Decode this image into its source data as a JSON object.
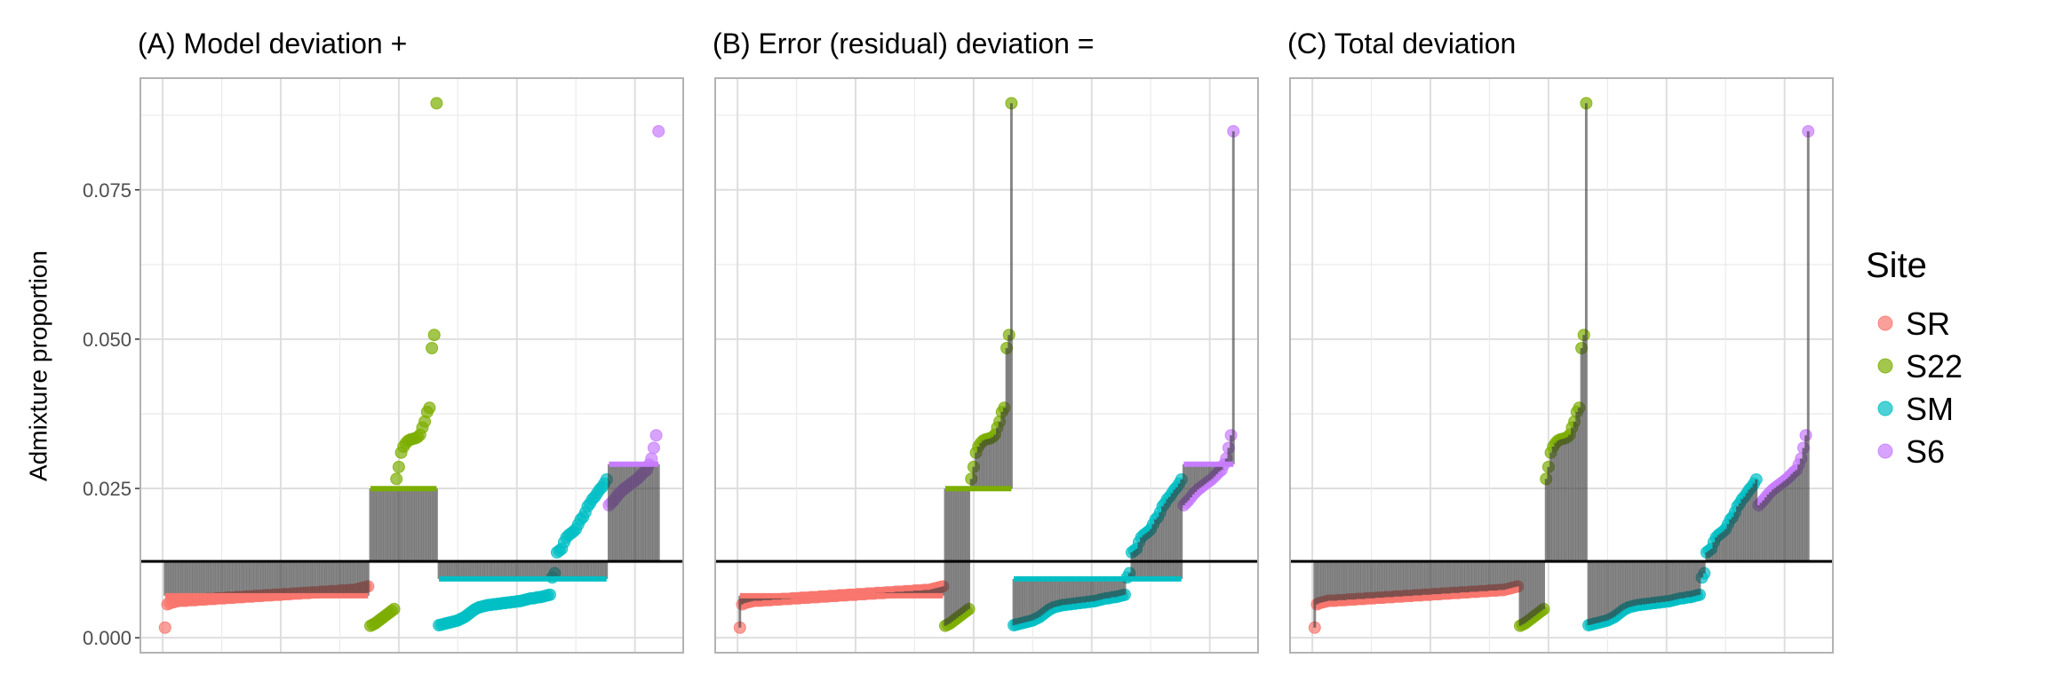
{
  "chart_data": [
    {
      "type": "scatter",
      "title": "(A) Model deviation +",
      "xlabel": "",
      "ylabel": "Admixture proportion",
      "mode": "model",
      "x_ticks_shown": false
    },
    {
      "type": "scatter",
      "title": "(B) Error (residual) deviation =",
      "xlabel": "",
      "ylabel": "",
      "mode": "error",
      "x_ticks_shown": false
    },
    {
      "type": "scatter",
      "title": "(C) Total deviation",
      "xlabel": "",
      "ylabel": "",
      "mode": "total",
      "x_ticks_shown": false
    }
  ],
  "shared": {
    "ylabel": "Admixture proportion",
    "ylim": [
      -0.0025,
      0.0937
    ],
    "y_ticks": [
      0,
      0.025,
      0.05,
      0.075
    ],
    "y_tick_labels": [
      "0.000",
      "0.025",
      "0.050",
      "0.075"
    ],
    "xlim": [
      1,
      210
    ],
    "grid": true,
    "legend": {
      "title": "Site",
      "placement": "right"
    },
    "series": [
      {
        "name": "SR",
        "color": "#F8766D",
        "values": [
          0.0017,
          0.0056,
          0.0058,
          0.0059,
          0.006,
          0.0061,
          0.0062,
          0.0062,
          0.0062,
          0.0062,
          0.0063,
          0.0063,
          0.0063,
          0.0063,
          0.0064,
          0.0064,
          0.0064,
          0.0064,
          0.0065,
          0.0065,
          0.0065,
          0.0065,
          0.0066,
          0.0066,
          0.0066,
          0.0066,
          0.0067,
          0.0067,
          0.0067,
          0.0067,
          0.0068,
          0.0068,
          0.0068,
          0.0068,
          0.0069,
          0.0069,
          0.0069,
          0.0069,
          0.007,
          0.007,
          0.007,
          0.007,
          0.0071,
          0.0071,
          0.0071,
          0.0071,
          0.0072,
          0.0072,
          0.0072,
          0.0072,
          0.0073,
          0.0073,
          0.0073,
          0.0073,
          0.0074,
          0.0074,
          0.0074,
          0.0074,
          0.0075,
          0.0075,
          0.0075,
          0.0075,
          0.0076,
          0.0076,
          0.0076,
          0.0076,
          0.0077,
          0.0077,
          0.0077,
          0.0077,
          0.0078,
          0.0078,
          0.0078,
          0.0078,
          0.0079,
          0.0079,
          0.0079,
          0.0079,
          0.008,
          0.008,
          0.008,
          0.0081,
          0.0082,
          0.0083,
          0.0084,
          0.0085,
          0.0086
        ]
      },
      {
        "name": "S22",
        "color": "#7CAE00",
        "values": [
          0.002,
          0.0022,
          0.0024,
          0.0027,
          0.003,
          0.0033,
          0.0036,
          0.0039,
          0.0042,
          0.0045,
          0.0048,
          0.0266,
          0.0286,
          0.031,
          0.032,
          0.0326,
          0.033,
          0.0332,
          0.0333,
          0.0334,
          0.0336,
          0.034,
          0.0352,
          0.0362,
          0.0378,
          0.0385,
          0.0485,
          0.0507,
          0.0895
        ]
      },
      {
        "name": "SM",
        "color": "#00BFC4",
        "values": [
          0.0021,
          0.0022,
          0.0023,
          0.0024,
          0.0025,
          0.0026,
          0.0027,
          0.0028,
          0.0029,
          0.0031,
          0.0033,
          0.0035,
          0.0038,
          0.0041,
          0.0044,
          0.0047,
          0.0049,
          0.0051,
          0.0052,
          0.0053,
          0.0054,
          0.0055,
          0.0055,
          0.0056,
          0.0056,
          0.0057,
          0.0057,
          0.0058,
          0.0058,
          0.0059,
          0.0059,
          0.006,
          0.006,
          0.0061,
          0.0061,
          0.0062,
          0.0063,
          0.0064,
          0.0065,
          0.0066,
          0.0066,
          0.0067,
          0.0068,
          0.0068,
          0.0069,
          0.007,
          0.0071,
          0.0072,
          0.0101,
          0.0108,
          0.0143,
          0.0146,
          0.0149,
          0.016,
          0.0168,
          0.0172,
          0.0175,
          0.0178,
          0.0182,
          0.019,
          0.0198,
          0.0202,
          0.021,
          0.022,
          0.0225,
          0.0232,
          0.0236,
          0.0242,
          0.0248,
          0.0252,
          0.0258,
          0.0265
        ]
      },
      {
        "name": "S6",
        "color": "#C77CFF",
        "values": [
          0.0222,
          0.0226,
          0.023,
          0.0235,
          0.024,
          0.0244,
          0.0248,
          0.0251,
          0.0254,
          0.0257,
          0.026,
          0.0263,
          0.0266,
          0.027,
          0.0274,
          0.0278,
          0.0281,
          0.029,
          0.03,
          0.0318,
          0.0339,
          0.0848
        ]
      }
    ]
  }
}
